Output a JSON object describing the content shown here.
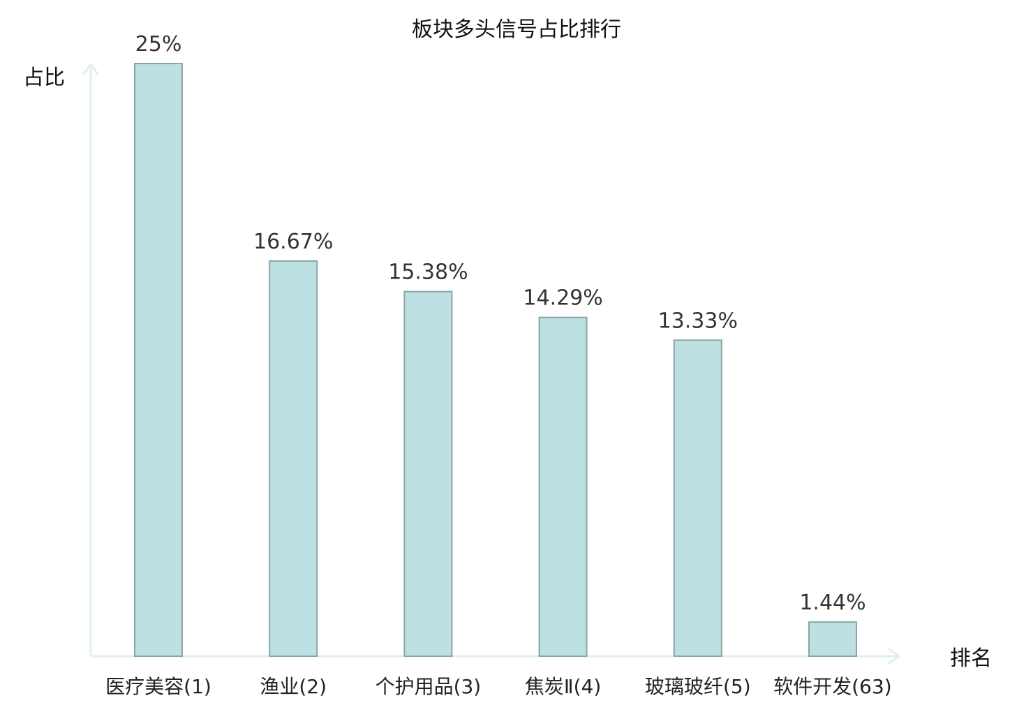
{
  "chart_data": {
    "type": "bar",
    "title": "板块多头信号占比排行",
    "xlabel": "排名",
    "ylabel": "占比",
    "categories": [
      "医疗美容(1)",
      "渔业(2)",
      "个护用品(3)",
      "焦炭Ⅱ(4)",
      "玻璃玻纤(5)",
      "软件开发(63)"
    ],
    "values": [
      25,
      16.67,
      15.38,
      14.29,
      13.33,
      1.44
    ],
    "value_labels": [
      "25%",
      "16.67%",
      "15.38%",
      "14.29%",
      "13.33%",
      "1.44%"
    ],
    "ylim": [
      0,
      25
    ],
    "grid": false,
    "highlight_index": 5,
    "colors": {
      "bar_fill": "#bde0e2",
      "bar_stroke": "#8aa6a8",
      "axis": "#dff1ef",
      "highlight_label": "#e02020",
      "value_text": "#333333",
      "label_text": "#222222"
    }
  }
}
